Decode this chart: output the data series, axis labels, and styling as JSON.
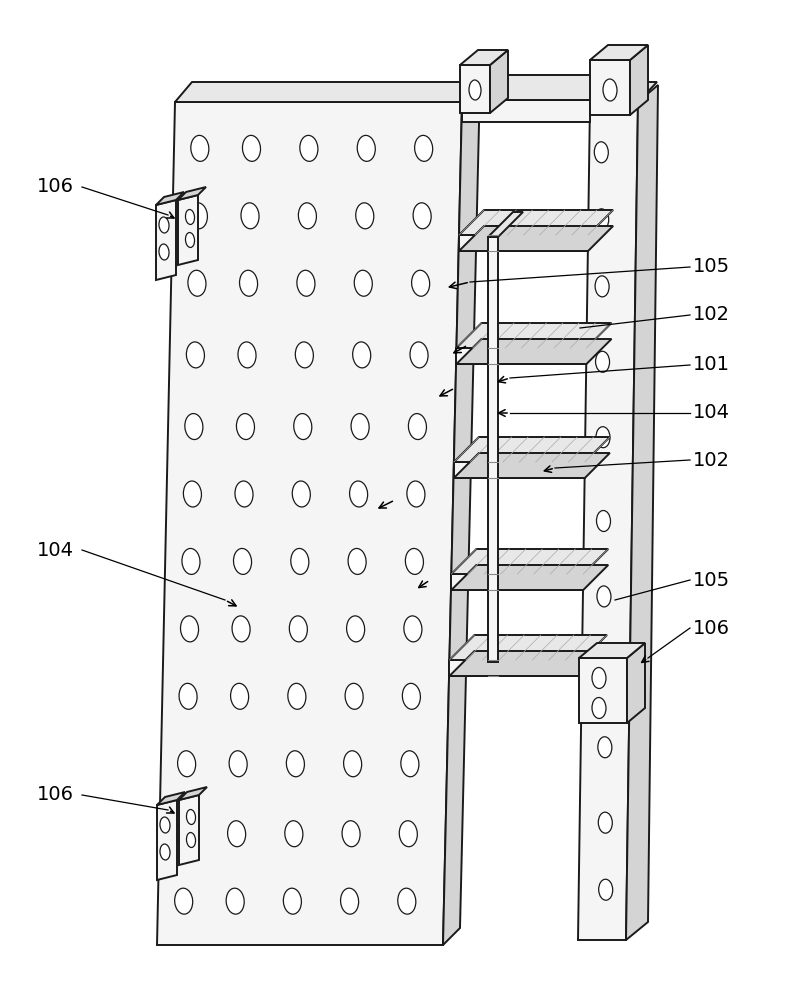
{
  "bg_color": "#ffffff",
  "lc": "#1a1a1a",
  "face_light": "#f5f5f5",
  "face_mid": "#e8e8e8",
  "face_dark": "#d4d4d4",
  "face_darker": "#c8c8c8",
  "label_fs": 14
}
